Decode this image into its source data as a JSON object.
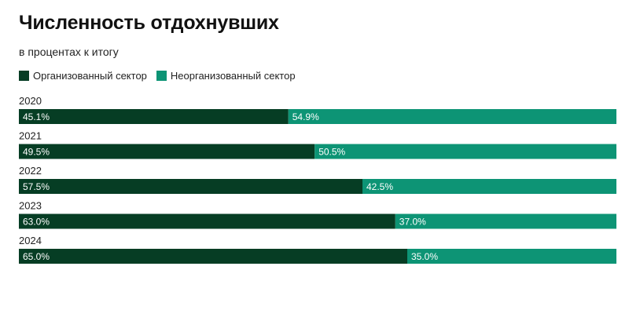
{
  "chart_data": {
    "type": "bar",
    "orientation": "horizontal",
    "stacked": true,
    "title": "Численность отдохнувших",
    "subtitle": "в процентах к итогу",
    "categories": [
      "2020",
      "2021",
      "2022",
      "2023",
      "2024"
    ],
    "series": [
      {
        "name": "Организованный сектор",
        "color": "#063d24",
        "values": [
          45.1,
          49.5,
          57.5,
          63.0,
          65.0
        ],
        "labels": [
          "45.1%",
          "49.5%",
          "57.5%",
          "63.0%",
          "65.0%"
        ]
      },
      {
        "name": "Неорганизованный сектор",
        "color": "#0d9475",
        "values": [
          54.9,
          50.5,
          42.5,
          37.0,
          35.0
        ],
        "labels": [
          "54.9%",
          "50.5%",
          "42.5%",
          "37.0%",
          "35.0%"
        ]
      }
    ],
    "xlim": [
      0,
      100
    ],
    "grid": false,
    "legend_position": "top-left"
  }
}
